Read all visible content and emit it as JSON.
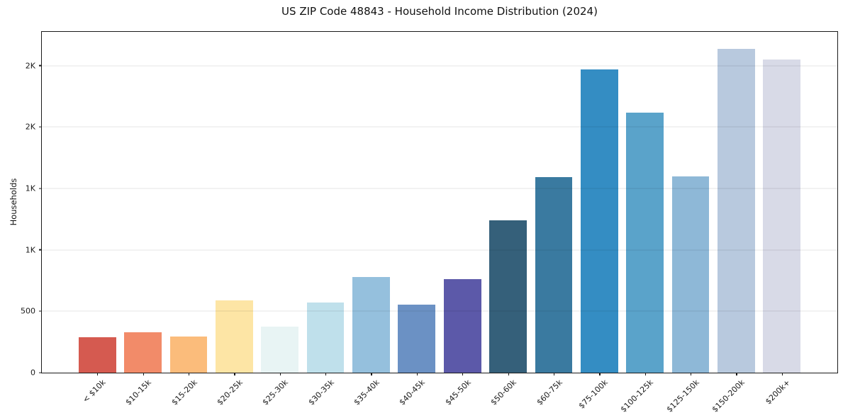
{
  "chart_data": {
    "type": "bar",
    "title": "US ZIP Code 48843 - Household Income Distribution (2024)",
    "xlabel": "",
    "ylabel": "Households",
    "categories": [
      "< $10k",
      "$10-15k",
      "$15-20k",
      "$20-25k",
      "$25-30k",
      "$30-35k",
      "$35-40k",
      "$40-45k",
      "$45-50k",
      "$50-60k",
      "$60-75k",
      "$75-100k",
      "$100-125k",
      "$125-150k",
      "$150-200k",
      "$200k+"
    ],
    "values": [
      290,
      330,
      295,
      590,
      375,
      570,
      780,
      555,
      760,
      1240,
      1595,
      2470,
      2120,
      1600,
      2635,
      2550
    ],
    "bar_colors": [
      "#d55a50",
      "#f28b69",
      "#fbbc7b",
      "#fde5a5",
      "#e8f4f4",
      "#bfe0eb",
      "#95c0dd",
      "#6b91c4",
      "#5c59a9",
      "#35607a",
      "#3a7aa0",
      "#348dc3",
      "#5aa3ca",
      "#8eb8d7",
      "#b8c9de",
      "#d8dae7"
    ],
    "ylim": [
      0,
      2775
    ],
    "yticks": {
      "values": [
        0,
        500,
        1000,
        1500,
        2000,
        2500
      ],
      "labels": [
        "0",
        "500",
        "1K",
        "1K",
        "2K",
        "2K"
      ]
    },
    "grid": "horizontal",
    "gridline_color": "#e5e5e5",
    "legend": "none",
    "background": "#ffffff"
  }
}
